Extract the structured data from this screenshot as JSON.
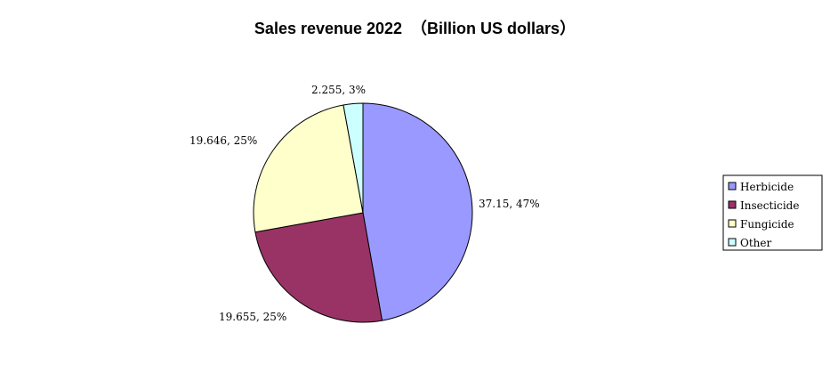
{
  "chart_data": {
    "type": "pie",
    "title": "Sales revenue 2022  （Billion US dollars）",
    "categories": [
      "Herbicide",
      "Insecticide",
      "Fungicide",
      "Other"
    ],
    "values": [
      37.15,
      19.655,
      19.646,
      2.255
    ],
    "percent_labels": [
      "47%",
      "25%",
      "25%",
      "3%"
    ],
    "data_labels": [
      "37.15, 47%",
      "19.655, 25%",
      "19.646, 25%",
      "2.255, 3%"
    ],
    "colors": [
      "#9999ff",
      "#993366",
      "#ffffcc",
      "#ccffff"
    ],
    "legend": {
      "placement": "right",
      "entries": [
        "Herbicide",
        "Insecticide",
        "Fungicide",
        "Other"
      ]
    }
  }
}
